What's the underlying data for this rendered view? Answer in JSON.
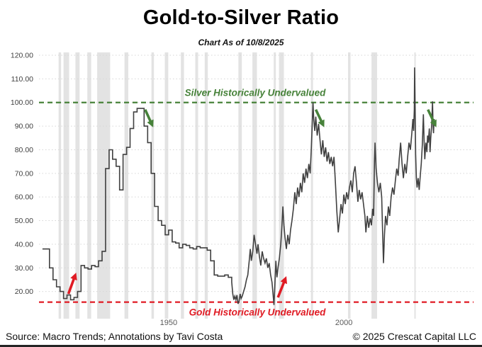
{
  "header": {
    "title": "Gold-to-Silver Ratio",
    "subtitle": "Chart As of 10/8/2025"
  },
  "footer": {
    "source": "Source: Macro Trends; Annotations by Tavi Costa",
    "copyright": "© 2025 Crescat Capital LLC"
  },
  "chart_data": {
    "type": "line",
    "title": "Gold-to-Silver Ratio",
    "subtitle": "Chart As of 10/8/2025",
    "legend": "none",
    "grid": "horizontal-dotted",
    "x_axis": {
      "range": [
        1913,
        2037
      ],
      "ticks": [
        {
          "value": 1950,
          "label": "1950"
        },
        {
          "value": 2000,
          "label": "2000"
        }
      ]
    },
    "y_axis": {
      "range": [
        10,
        120
      ],
      "ticks": [
        {
          "value": 120,
          "label": "120.00"
        },
        {
          "value": 110,
          "label": "110.00"
        },
        {
          "value": 100,
          "label": "100.00"
        },
        {
          "value": 90,
          "label": "90.00"
        },
        {
          "value": 80,
          "label": "80.00"
        },
        {
          "value": 70,
          "label": "70.00"
        },
        {
          "value": 60,
          "label": "60.00"
        },
        {
          "value": 50,
          "label": "50.00"
        },
        {
          "value": 40,
          "label": "40.00"
        },
        {
          "value": 30,
          "label": "30.00"
        },
        {
          "value": 20,
          "label": "20.00"
        }
      ]
    },
    "colors": {
      "series": "#404040",
      "silver_green": "#47823a",
      "gold_red": "#e01b24",
      "recession_band": "#e3e3e3",
      "gridline": "#d6d6d6",
      "x_tick": "#595959",
      "y_tick": "#404040"
    },
    "reference_lines": [
      {
        "id": "silver",
        "value": 100,
        "style": "dashed",
        "color": "#47823a",
        "label": "Silver Historically Undervalued",
        "label_position": {
          "year": 1974.7,
          "value": 104.1
        }
      },
      {
        "id": "gold",
        "value": 15.5,
        "style": "dashed",
        "color": "#e01b24",
        "label": "Gold Historically Undervalued",
        "label_position": {
          "year": 1975.3,
          "value": 11.2
        }
      }
    ],
    "arrows": [
      {
        "color": "#47823a",
        "from": [
          1943.3,
          97.0
        ],
        "to": [
          1945.6,
          89.5
        ]
      },
      {
        "color": "#47823a",
        "from": [
          1992.0,
          97.0
        ],
        "to": [
          1994.4,
          89.5
        ]
      },
      {
        "color": "#47823a",
        "from": [
          2024.0,
          97.0
        ],
        "to": [
          2026.4,
          89.5
        ]
      },
      {
        "color": "#e01b24",
        "from": [
          1921.4,
          19.0
        ],
        "to": [
          1923.6,
          28.0
        ]
      },
      {
        "color": "#e01b24",
        "from": [
          1981.2,
          17.5
        ],
        "to": [
          1983.6,
          26.5
        ]
      }
    ],
    "recession_bands": [
      [
        1918.6,
        1919.3
      ],
      [
        1920.0,
        1921.6
      ],
      [
        1923.4,
        1924.6
      ],
      [
        1926.8,
        1927.9
      ],
      [
        1929.6,
        1933.3
      ],
      [
        1937.4,
        1938.5
      ],
      [
        1945.1,
        1945.8
      ],
      [
        1948.9,
        1949.9
      ],
      [
        1953.5,
        1954.4
      ],
      [
        1957.6,
        1958.4
      ],
      [
        1960.3,
        1961.2
      ],
      [
        1969.9,
        1970.9
      ],
      [
        1973.9,
        1975.2
      ],
      [
        1980.0,
        1980.6
      ],
      [
        1981.5,
        1982.9
      ],
      [
        1990.6,
        1991.2
      ],
      [
        2001.2,
        2001.9
      ],
      [
        2007.9,
        2009.5
      ],
      [
        2020.1,
        2020.4
      ]
    ],
    "series": [
      {
        "name": "Gold-to-Silver Ratio",
        "color": "#404040",
        "annual_step": [
          [
            1914,
            38
          ],
          [
            1915,
            38
          ],
          [
            1916,
            30
          ],
          [
            1917,
            25
          ],
          [
            1918,
            22
          ],
          [
            1919,
            20
          ],
          [
            1920,
            17
          ],
          [
            1921,
            18.5
          ],
          [
            1922,
            16.5
          ],
          [
            1923,
            17.5
          ],
          [
            1924,
            20
          ],
          [
            1925,
            31
          ],
          [
            1926,
            30
          ],
          [
            1927,
            29.5
          ],
          [
            1928,
            31
          ],
          [
            1929,
            30.5
          ],
          [
            1930,
            33
          ],
          [
            1931,
            37
          ],
          [
            1932,
            72
          ],
          [
            1933,
            80
          ],
          [
            1934,
            76
          ],
          [
            1935,
            73
          ],
          [
            1936,
            63
          ],
          [
            1937,
            78
          ],
          [
            1938,
            81
          ],
          [
            1939,
            89
          ],
          [
            1940,
            96
          ],
          [
            1941,
            97.5
          ],
          [
            1942,
            97.5
          ],
          [
            1943,
            90
          ],
          [
            1944,
            83
          ],
          [
            1945,
            70
          ],
          [
            1946,
            56
          ],
          [
            1947,
            50
          ],
          [
            1948,
            48
          ],
          [
            1949,
            44
          ],
          [
            1950,
            46
          ],
          [
            1951,
            41
          ],
          [
            1952,
            40.5
          ],
          [
            1953,
            38.5
          ],
          [
            1954,
            40
          ],
          [
            1955,
            39.5
          ],
          [
            1956,
            38.5
          ],
          [
            1957,
            38
          ],
          [
            1958,
            39
          ],
          [
            1959,
            38.5
          ],
          [
            1960,
            38.5
          ],
          [
            1961,
            37.5
          ],
          [
            1962,
            33
          ],
          [
            1963,
            27
          ],
          [
            1964,
            26.5
          ],
          [
            1965,
            26.5
          ],
          [
            1966,
            27
          ],
          [
            1967,
            26
          ]
        ],
        "monthly": [
          [
            1968.0,
            24
          ],
          [
            1968.3,
            19
          ],
          [
            1968.6,
            16.5
          ],
          [
            1968.9,
            18
          ],
          [
            1969.2,
            16.5
          ],
          [
            1969.5,
            18.5
          ],
          [
            1969.8,
            14.8
          ],
          [
            1970.1,
            16
          ],
          [
            1970.4,
            19
          ],
          [
            1970.7,
            17
          ],
          [
            1971.0,
            18
          ],
          [
            1971.4,
            20
          ],
          [
            1971.8,
            22
          ],
          [
            1972.2,
            25
          ],
          [
            1972.6,
            27
          ],
          [
            1973.0,
            33
          ],
          [
            1973.3,
            38
          ],
          [
            1973.6,
            33
          ],
          [
            1974.0,
            37
          ],
          [
            1974.4,
            44
          ],
          [
            1974.8,
            40
          ],
          [
            1975.2,
            36
          ],
          [
            1975.5,
            40
          ],
          [
            1975.9,
            35
          ],
          [
            1976.3,
            31
          ],
          [
            1976.7,
            37
          ],
          [
            1977.1,
            34
          ],
          [
            1977.5,
            32
          ],
          [
            1977.9,
            34
          ],
          [
            1978.3,
            30
          ],
          [
            1978.7,
            32
          ],
          [
            1979.1,
            27
          ],
          [
            1979.5,
            24
          ],
          [
            1979.8,
            19
          ],
          [
            1980.05,
            14.3
          ],
          [
            1980.3,
            22
          ],
          [
            1980.6,
            33
          ],
          [
            1980.9,
            26
          ],
          [
            1981.2,
            30
          ],
          [
            1981.6,
            34
          ],
          [
            1982.0,
            40
          ],
          [
            1982.3,
            47
          ],
          [
            1982.6,
            56
          ],
          [
            1982.9,
            48
          ],
          [
            1983.2,
            43
          ],
          [
            1983.6,
            38
          ],
          [
            1984.0,
            44
          ],
          [
            1984.4,
            40
          ],
          [
            1984.8,
            46
          ],
          [
            1985.2,
            50
          ],
          [
            1985.6,
            55
          ],
          [
            1986.0,
            62
          ],
          [
            1986.4,
            57
          ],
          [
            1986.8,
            64
          ],
          [
            1987.2,
            60
          ],
          [
            1987.6,
            66
          ],
          [
            1988.0,
            62
          ],
          [
            1988.4,
            70
          ],
          [
            1988.8,
            66
          ],
          [
            1989.2,
            72
          ],
          [
            1989.6,
            68
          ],
          [
            1990.0,
            74
          ],
          [
            1990.4,
            70
          ],
          [
            1990.7,
            80
          ],
          [
            1991.0,
            92
          ],
          [
            1991.2,
            100
          ],
          [
            1991.4,
            93
          ],
          [
            1991.7,
            88
          ],
          [
            1992.0,
            94
          ],
          [
            1992.4,
            86
          ],
          [
            1992.8,
            91
          ],
          [
            1993.2,
            84
          ],
          [
            1993.6,
            78
          ],
          [
            1994.0,
            84
          ],
          [
            1994.4,
            77
          ],
          [
            1994.8,
            81
          ],
          [
            1995.2,
            75
          ],
          [
            1995.6,
            79
          ],
          [
            1996.0,
            74
          ],
          [
            1996.4,
            77
          ],
          [
            1996.8,
            73
          ],
          [
            1997.2,
            77
          ],
          [
            1997.6,
            66
          ],
          [
            1998.0,
            54
          ],
          [
            1998.4,
            45
          ],
          [
            1998.8,
            51
          ],
          [
            1999.2,
            57
          ],
          [
            1999.6,
            53
          ],
          [
            2000.0,
            61
          ],
          [
            2000.4,
            57
          ],
          [
            2000.8,
            62
          ],
          [
            2001.2,
            59
          ],
          [
            2001.6,
            64
          ],
          [
            2002.0,
            67
          ],
          [
            2002.4,
            62
          ],
          [
            2002.8,
            70
          ],
          [
            2003.2,
            73
          ],
          [
            2003.6,
            66
          ],
          [
            2004.0,
            58
          ],
          [
            2004.4,
            63
          ],
          [
            2004.8,
            59
          ],
          [
            2005.2,
            62
          ],
          [
            2005.6,
            57
          ],
          [
            2006.0,
            52
          ],
          [
            2006.3,
            45
          ],
          [
            2006.7,
            52
          ],
          [
            2007.1,
            47
          ],
          [
            2007.5,
            51
          ],
          [
            2007.9,
            48
          ],
          [
            2008.2,
            55
          ],
          [
            2008.5,
            52
          ],
          [
            2008.75,
            75
          ],
          [
            2008.9,
            83
          ],
          [
            2009.2,
            72
          ],
          [
            2009.6,
            66
          ],
          [
            2010.0,
            62
          ],
          [
            2010.4,
            66
          ],
          [
            2010.8,
            60
          ],
          [
            2011.05,
            46
          ],
          [
            2011.3,
            32
          ],
          [
            2011.6,
            44
          ],
          [
            2011.9,
            52
          ],
          [
            2012.3,
            48
          ],
          [
            2012.7,
            56
          ],
          [
            2013.1,
            52
          ],
          [
            2013.5,
            60
          ],
          [
            2013.9,
            64
          ],
          [
            2014.3,
            61
          ],
          [
            2014.7,
            67
          ],
          [
            2015.1,
            72
          ],
          [
            2015.5,
            69
          ],
          [
            2015.8,
            76
          ],
          [
            2016.2,
            83
          ],
          [
            2016.6,
            74
          ],
          [
            2017.0,
            68
          ],
          [
            2017.4,
            74
          ],
          [
            2017.8,
            70
          ],
          [
            2018.2,
            77
          ],
          [
            2018.6,
            83
          ],
          [
            2019.0,
            80
          ],
          [
            2019.4,
            87
          ],
          [
            2019.7,
            93
          ],
          [
            2019.9,
            88
          ],
          [
            2020.1,
            97
          ],
          [
            2020.2,
            114.8
          ],
          [
            2020.35,
            97
          ],
          [
            2020.5,
            78
          ],
          [
            2020.7,
            68
          ],
          [
            2020.9,
            64
          ],
          [
            2021.2,
            68
          ],
          [
            2021.5,
            63
          ],
          [
            2021.8,
            69
          ],
          [
            2022.1,
            74
          ],
          [
            2022.4,
            82
          ],
          [
            2022.7,
            95
          ],
          [
            2022.9,
            84
          ],
          [
            2023.1,
            76
          ],
          [
            2023.4,
            83
          ],
          [
            2023.7,
            79
          ],
          [
            2023.9,
            86
          ],
          [
            2024.1,
            83
          ],
          [
            2024.4,
            89
          ],
          [
            2024.6,
            79
          ],
          [
            2024.8,
            85
          ],
          [
            2025.0,
            89
          ],
          [
            2025.15,
            94
          ],
          [
            2025.3,
            100.5
          ],
          [
            2025.45,
            91
          ],
          [
            2025.6,
            87
          ],
          [
            2025.7,
            91
          ],
          [
            2025.8,
            93
          ]
        ]
      }
    ]
  }
}
